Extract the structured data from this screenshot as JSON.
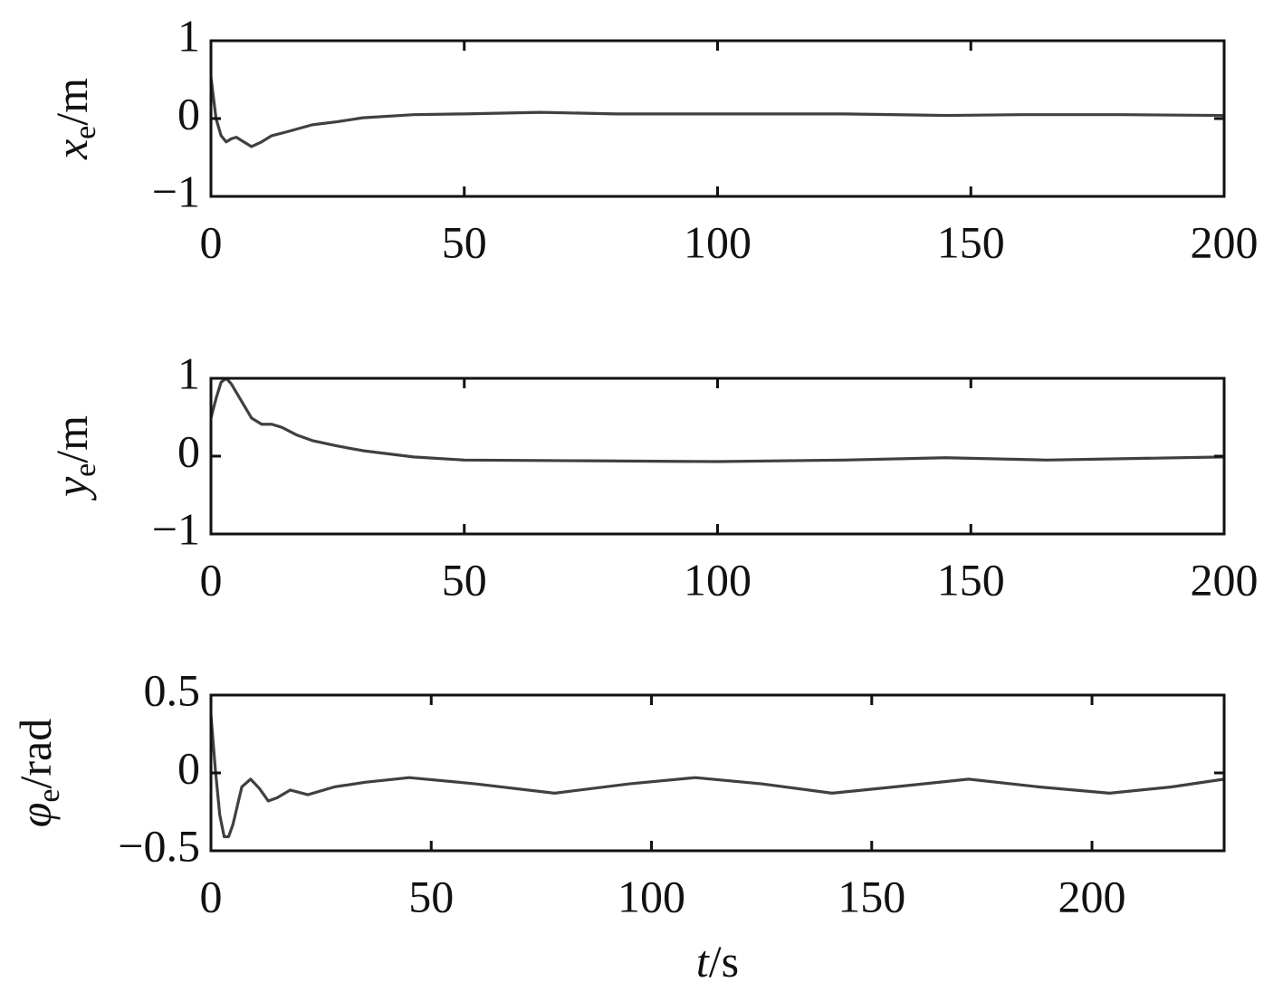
{
  "chart_data": [
    {
      "type": "line",
      "ylabel": [
        "x",
        "e",
        "/m"
      ],
      "x": [
        0,
        1,
        2,
        3,
        4,
        5,
        6,
        8,
        10,
        12,
        15,
        20,
        25,
        30,
        40,
        50,
        65,
        80,
        100,
        125,
        145,
        160,
        180,
        200
      ],
      "values": [
        0.53,
        0.0,
        -0.22,
        -0.3,
        -0.26,
        -0.24,
        -0.28,
        -0.36,
        -0.3,
        -0.22,
        -0.17,
        -0.08,
        -0.04,
        0.01,
        0.05,
        0.06,
        0.08,
        0.06,
        0.06,
        0.06,
        0.04,
        0.05,
        0.05,
        0.04
      ],
      "color": "#404040",
      "xlim": [
        0,
        200
      ],
      "xticks": [
        0,
        50,
        100,
        150,
        200
      ],
      "ylim": [
        -1,
        1
      ],
      "yticks": [
        {
          "value": -1,
          "label": "−1"
        },
        0,
        1
      ]
    },
    {
      "type": "line",
      "ylabel": [
        "y",
        "e",
        "/m"
      ],
      "x": [
        0,
        1,
        2,
        3,
        4,
        6,
        8,
        10,
        12,
        14,
        17,
        20,
        25,
        30,
        40,
        50,
        75,
        100,
        125,
        145,
        165,
        200
      ],
      "values": [
        0.49,
        0.74,
        0.95,
        1.0,
        0.93,
        0.71,
        0.49,
        0.41,
        0.41,
        0.37,
        0.27,
        0.2,
        0.13,
        0.07,
        -0.01,
        -0.05,
        -0.06,
        -0.07,
        -0.05,
        -0.02,
        -0.05,
        -0.01
      ],
      "color": "#404040",
      "xlim": [
        0,
        200
      ],
      "xticks": [
        0,
        50,
        100,
        150,
        200
      ],
      "ylim": [
        -1,
        1
      ],
      "yticks": [
        {
          "value": -1,
          "label": "−1"
        },
        0,
        1
      ]
    },
    {
      "type": "line",
      "ylabel": [
        "φ",
        "e",
        "/rad"
      ],
      "xlabel": [
        "t",
        "/s"
      ],
      "x": [
        0,
        1,
        2,
        3,
        4,
        5,
        7,
        9,
        11,
        13,
        15,
        18,
        22,
        28,
        35,
        45,
        60,
        78,
        95,
        110,
        125,
        141,
        155,
        172,
        188,
        204,
        218,
        230
      ],
      "values": [
        0.37,
        0.02,
        -0.27,
        -0.41,
        -0.41,
        -0.33,
        -0.09,
        -0.04,
        -0.1,
        -0.18,
        -0.16,
        -0.11,
        -0.14,
        -0.09,
        -0.06,
        -0.03,
        -0.07,
        -0.13,
        -0.07,
        -0.03,
        -0.07,
        -0.13,
        -0.09,
        -0.04,
        -0.09,
        -0.13,
        -0.09,
        -0.04
      ],
      "color": "#404040",
      "xlim": [
        0,
        230
      ],
      "xticks": [
        0,
        50,
        100,
        150,
        200
      ],
      "ylim": [
        -0.5,
        0.5
      ],
      "yticks": [
        {
          "value": -0.5,
          "label": "−0.5"
        },
        0,
        0.5
      ]
    }
  ]
}
